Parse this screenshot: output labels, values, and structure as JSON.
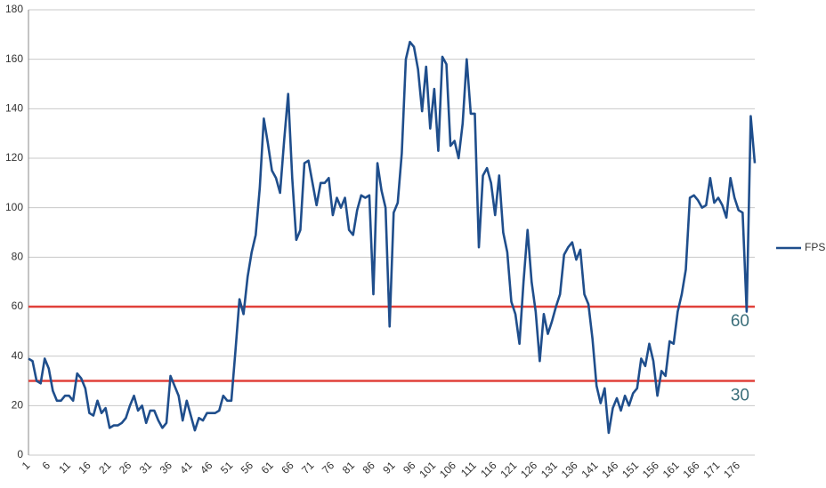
{
  "chart_data": {
    "type": "line",
    "categories": [
      1,
      null,
      null,
      null,
      null,
      6,
      null,
      null,
      null,
      null,
      11,
      null,
      null,
      null,
      null,
      16,
      null,
      null,
      null,
      null,
      21,
      null,
      null,
      null,
      null,
      26,
      null,
      null,
      null,
      null,
      31,
      null,
      null,
      null,
      null,
      36,
      null,
      null,
      null,
      null,
      41,
      null,
      null,
      null,
      null,
      46,
      null,
      null,
      null,
      null,
      51,
      null,
      null,
      null,
      null,
      56,
      null,
      null,
      null,
      null,
      61,
      null,
      null,
      null,
      null,
      66,
      null,
      null,
      null,
      null,
      71,
      null,
      null,
      null,
      null,
      76,
      null,
      null,
      null,
      null,
      81,
      null,
      null,
      null,
      null,
      86,
      null,
      null,
      null,
      null,
      91,
      null,
      null,
      null,
      null,
      96,
      null,
      null,
      null,
      null,
      101,
      null,
      null,
      null,
      null,
      106,
      null,
      null,
      null,
      null,
      111,
      null,
      null,
      null,
      null,
      116,
      null,
      null,
      null,
      null,
      121,
      null,
      null,
      null,
      null,
      126,
      null,
      null,
      null,
      null,
      131,
      null,
      null,
      null,
      null,
      136,
      null,
      null,
      null,
      null,
      141,
      null,
      null,
      null,
      null,
      146,
      null,
      null,
      null,
      null,
      151,
      null,
      null,
      null,
      null,
      156,
      null,
      null,
      null,
      null,
      161,
      null,
      null,
      null,
      null,
      166,
      null,
      null,
      null,
      null,
      171,
      null,
      null,
      null,
      null,
      176,
      null,
      null,
      null,
      null
    ],
    "series": [
      {
        "name": "FPS",
        "color": "#1f4e8c",
        "values": [
          39,
          38,
          30,
          29,
          39,
          35,
          26,
          22,
          22,
          24,
          24,
          22,
          33,
          31,
          27,
          17,
          16,
          22,
          17,
          19,
          11,
          12,
          12,
          13,
          15,
          20,
          24,
          18,
          20,
          13,
          18,
          18,
          14,
          11,
          13,
          32,
          28,
          24,
          14,
          22,
          16,
          10,
          15,
          14,
          17,
          17,
          17,
          18,
          24,
          22,
          22,
          42,
          63,
          57,
          72,
          82,
          89,
          108,
          136,
          126,
          115,
          112,
          106,
          127,
          146,
          112,
          87,
          91,
          118,
          119,
          110,
          101,
          110,
          110,
          112,
          97,
          104,
          100,
          104,
          91,
          89,
          99,
          105,
          104,
          105,
          65,
          118,
          107,
          100,
          52,
          98,
          102,
          122,
          160,
          167,
          165,
          156,
          139,
          157,
          132,
          148,
          123,
          161,
          158,
          125,
          127,
          120,
          134,
          160,
          138,
          138,
          84,
          113,
          116,
          110,
          97,
          113,
          90,
          82,
          62,
          57,
          45,
          70,
          91,
          70,
          58,
          38,
          57,
          49,
          54,
          60,
          65,
          81,
          84,
          86,
          79,
          83,
          65,
          61,
          47,
          28,
          21,
          27,
          9,
          19,
          23,
          18,
          24,
          20,
          25,
          27,
          39,
          36,
          45,
          38,
          24,
          34,
          32,
          46,
          45,
          58,
          65,
          75,
          104,
          105,
          103,
          100,
          101,
          112,
          102,
          104,
          101,
          96,
          112,
          104,
          99,
          98,
          58,
          137,
          118
        ]
      }
    ],
    "ylim": [
      0,
      180
    ],
    "yticks": [
      0,
      20,
      40,
      60,
      80,
      100,
      120,
      140,
      160,
      180
    ],
    "grid": true,
    "reference_lines": [
      60,
      30
    ],
    "reference_color": "#e0403a",
    "legend": "right"
  }
}
